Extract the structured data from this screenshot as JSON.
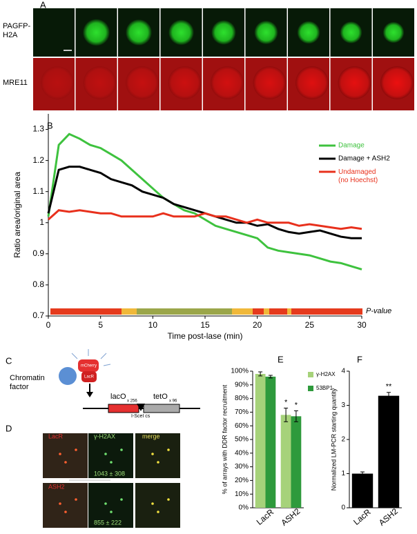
{
  "panels": {
    "a": {
      "letter": "A",
      "row_labels": [
        "PAGFP-\nH2A",
        "MRE11"
      ]
    },
    "b": {
      "letter": "B"
    },
    "c": {
      "letter": "C",
      "factor": "Chromatin\nfactor",
      "mcherry": "mCherry",
      "lacr": "LacR",
      "laco": "lacO",
      "laco_n": "x 256",
      "teto": "tetO",
      "teto_n": "x 96",
      "site": "I-SceI cs"
    },
    "d": {
      "letter": "D",
      "col_labels": [
        "LacR",
        "γ-H2AX",
        "merge"
      ],
      "row2_label": "ASH2",
      "counts": [
        "1043 ± 308",
        "855 ± 222"
      ]
    },
    "e": {
      "letter": "E"
    },
    "f": {
      "letter": "F"
    }
  },
  "chart_data": [
    {
      "type": "line",
      "x_label": "Time post-lase (min)",
      "y_label": "Ratio area/original area",
      "strip_label": "P-value",
      "x": [
        0,
        1,
        2,
        3,
        4,
        5,
        6,
        7,
        8,
        9,
        10,
        11,
        12,
        13,
        14,
        15,
        16,
        17,
        18,
        19,
        20,
        21,
        22,
        23,
        24,
        25,
        26,
        27,
        28,
        29,
        30
      ],
      "series": [
        {
          "name": "Damage",
          "color": "#3ec23e",
          "values": [
            1.02,
            1.25,
            1.285,
            1.27,
            1.25,
            1.24,
            1.22,
            1.2,
            1.17,
            1.14,
            1.11,
            1.08,
            1.06,
            1.04,
            1.03,
            1.01,
            0.99,
            0.98,
            0.97,
            0.96,
            0.95,
            0.92,
            0.91,
            0.905,
            0.9,
            0.895,
            0.885,
            0.875,
            0.87,
            0.86,
            0.85
          ]
        },
        {
          "name": "Damage + ASH2",
          "color": "#000000",
          "values": [
            1.03,
            1.17,
            1.18,
            1.18,
            1.17,
            1.16,
            1.14,
            1.13,
            1.12,
            1.1,
            1.09,
            1.08,
            1.06,
            1.05,
            1.04,
            1.03,
            1.02,
            1.01,
            1.0,
            1.0,
            0.99,
            0.995,
            0.98,
            0.97,
            0.965,
            0.97,
            0.975,
            0.965,
            0.955,
            0.95,
            0.95
          ]
        },
        {
          "name": "Undamaged\n(no Hoechst)",
          "color": "#e8301c",
          "values": [
            1.01,
            1.04,
            1.035,
            1.04,
            1.035,
            1.03,
            1.03,
            1.02,
            1.02,
            1.02,
            1.02,
            1.03,
            1.02,
            1.02,
            1.02,
            1.03,
            1.02,
            1.02,
            1.01,
            1.0,
            1.01,
            1.0,
            1.0,
            1.0,
            0.99,
            0.995,
            0.99,
            0.985,
            0.98,
            0.985,
            0.98
          ]
        }
      ],
      "xlim": [
        0,
        30
      ],
      "xticks": [
        0,
        5,
        10,
        15,
        20,
        25,
        30
      ],
      "ylim": [
        0.7,
        1.35
      ],
      "yticks": [
        0.7,
        0.8,
        0.9,
        1,
        1.1,
        1.2,
        1.3
      ]
    },
    {
      "type": "bar",
      "y_label": "% of arrays with DDR factor recruitment",
      "categories": [
        "LacR",
        "ASH2"
      ],
      "series": [
        {
          "name": "γ-H2AX",
          "color": "#a6d27a",
          "values": [
            98,
            68
          ],
          "errors": [
            1.5,
            5
          ]
        },
        {
          "name": "53BP1",
          "color": "#2e9a3c",
          "values": [
            96,
            67
          ],
          "errors": [
            1,
            4
          ]
        }
      ],
      "annotations": [
        "*",
        "*"
      ],
      "ylim": [
        0,
        100
      ],
      "yticks": [
        {
          "value": 0,
          "label": "0%"
        },
        {
          "value": 10,
          "label": "10%"
        },
        {
          "value": 20,
          "label": "20%"
        },
        {
          "value": 30,
          "label": "30%"
        },
        {
          "value": 40,
          "label": "40%"
        },
        {
          "value": 50,
          "label": "50%"
        },
        {
          "value": 60,
          "label": "60%"
        },
        {
          "value": 70,
          "label": "70%"
        },
        {
          "value": 80,
          "label": "80%"
        },
        {
          "value": 90,
          "label": "90%"
        },
        {
          "value": 100,
          "label": "100%"
        }
      ]
    },
    {
      "type": "bar",
      "y_label": "Normalized LM-PCR starting quantity",
      "categories": [
        "LacR",
        "ASH2"
      ],
      "series": [
        {
          "color": "#000000",
          "values": [
            1.0,
            3.28
          ],
          "errors": [
            0.05,
            0.1
          ]
        }
      ],
      "annotations": [
        "**"
      ],
      "ylim": [
        0,
        4
      ],
      "yticks": [
        0,
        1,
        2,
        3,
        4
      ]
    }
  ]
}
